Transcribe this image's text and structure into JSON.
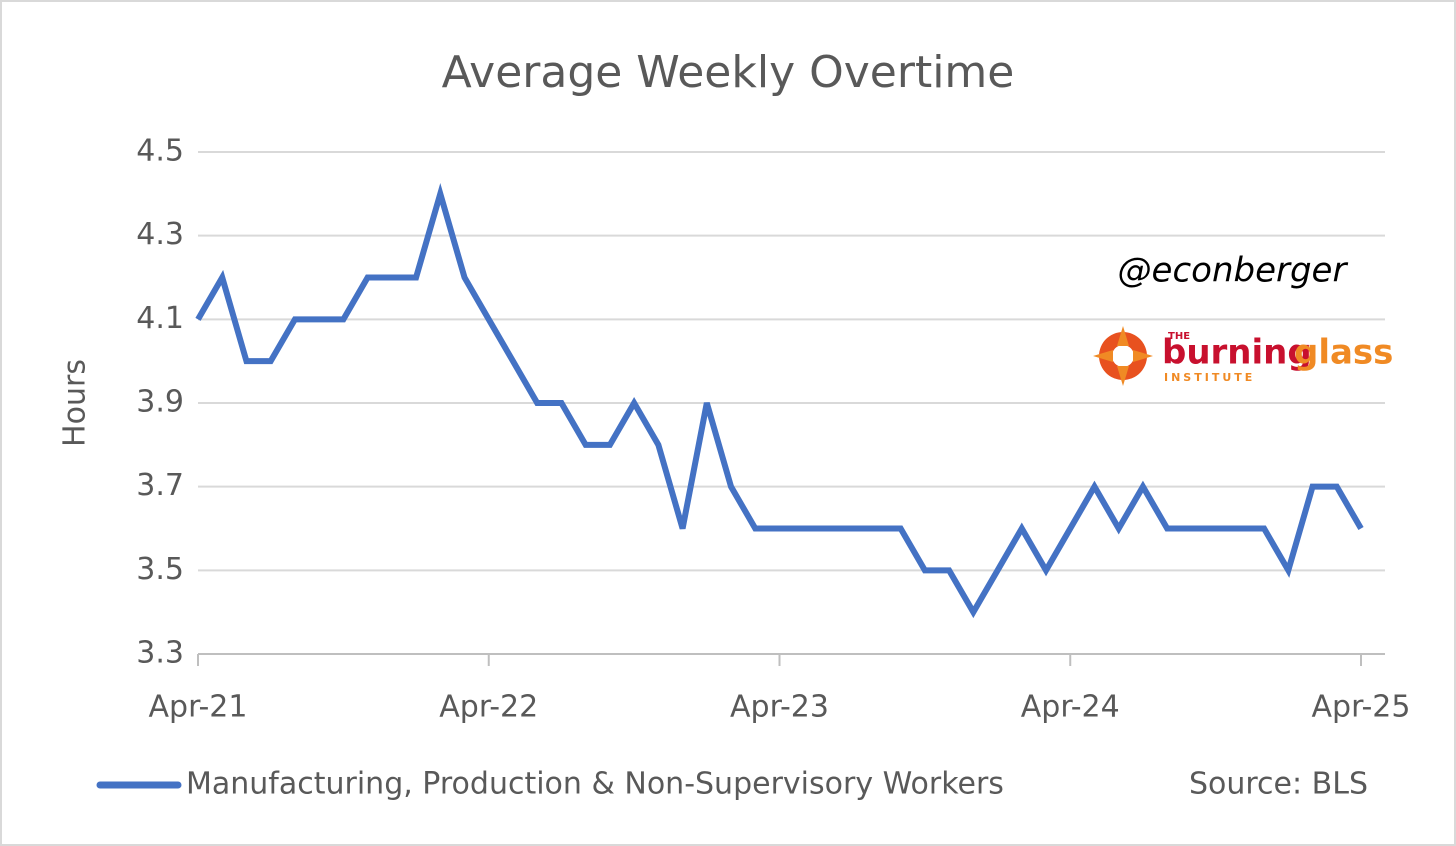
{
  "chart_data": {
    "type": "line",
    "title": "Average Weekly Overtime",
    "y_label": "Hours",
    "categories": [
      "Apr-21",
      null,
      null,
      null,
      null,
      null,
      null,
      null,
      null,
      null,
      null,
      null,
      "Apr-22",
      null,
      null,
      null,
      null,
      null,
      null,
      null,
      null,
      null,
      null,
      null,
      "Apr-23",
      null,
      null,
      null,
      null,
      null,
      null,
      null,
      null,
      null,
      null,
      null,
      "Apr-24",
      null,
      null,
      null,
      null,
      null,
      null,
      null,
      null,
      null,
      null,
      null,
      "Apr-25"
    ],
    "series": [
      {
        "name": "Manufacturing, Production & Non-Supervisory Workers",
        "color": "#4472c4",
        "values": [
          4.1,
          4.2,
          4.0,
          4.0,
          4.1,
          4.1,
          4.1,
          4.2,
          4.2,
          4.2,
          4.4,
          4.2,
          4.1,
          4.0,
          3.9,
          3.9,
          3.8,
          3.8,
          3.9,
          3.8,
          3.6,
          3.9,
          3.7,
          3.6,
          3.6,
          3.6,
          3.6,
          3.6,
          3.6,
          3.6,
          3.5,
          3.5,
          3.4,
          3.5,
          3.6,
          3.5,
          3.6,
          3.7,
          3.6,
          3.7,
          3.6,
          3.6,
          3.6,
          3.6,
          3.6,
          3.5,
          3.7,
          3.7,
          3.6
        ]
      }
    ],
    "ylim": [
      3.3,
      4.5
    ],
    "yticks": [
      3.3,
      3.5,
      3.7,
      3.9,
      4.1,
      4.3,
      4.5
    ],
    "grid": true,
    "legend": "bottom",
    "source": "Source: BLS",
    "handle": "@econberger",
    "logo": {
      "the": "THE",
      "name1": "burning",
      "name2": "glass",
      "sub": "INSTITUTE"
    }
  }
}
